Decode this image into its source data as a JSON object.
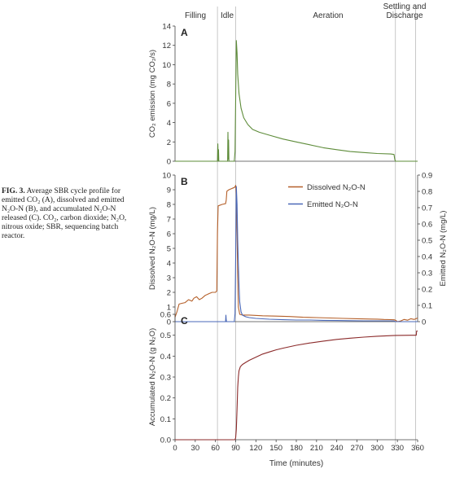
{
  "caption": {
    "label": "FIG. 3.",
    "text": "Average SBR cycle profile for emitted CO₂ (A), dissolved and emitted N₂O-N (B), and accumulated N₂O-N released (C). CO₂, carbon dioxide; N₂O, nitrous oxide; SBR, sequencing batch reactor."
  },
  "phases": [
    {
      "label": "Filling",
      "start": 0,
      "end": 63
    },
    {
      "label": "Idle",
      "start": 63,
      "end": 90
    },
    {
      "label": "Aeration",
      "start": 90,
      "end": 327
    },
    {
      "label": "Settling and Discharge",
      "start": 327,
      "end": 360
    }
  ],
  "xaxis": {
    "label": "Time (minutes)",
    "ticks": [
      0,
      30,
      60,
      90,
      120,
      150,
      180,
      210,
      240,
      270,
      300,
      330,
      360
    ],
    "range": [
      0,
      360
    ]
  },
  "colors": {
    "co2": "#5e8c3a",
    "dissolved": "#b5602a",
    "emitted": "#4a68b8",
    "accumulated": "#8b2a2a",
    "phase_line": "#c8c8c8",
    "axis": "#444444"
  },
  "chart_data": [
    {
      "type": "line",
      "panel": "A",
      "ylabel": "CO₂ emission (mg CO₂/s)",
      "ylim": [
        0,
        14
      ],
      "yticks": [
        0,
        2,
        4,
        6,
        8,
        10,
        12,
        14
      ],
      "series": [
        {
          "name": "",
          "color": "#5e8c3a",
          "x": [
            0,
            63,
            63.5,
            64,
            64.5,
            65,
            78,
            78.5,
            79,
            79.5,
            80,
            88,
            89,
            90,
            91,
            92,
            93,
            95,
            98,
            102,
            108,
            115,
            125,
            140,
            160,
            180,
            200,
            220,
            240,
            260,
            280,
            300,
            320,
            325,
            326,
            327,
            330,
            360
          ],
          "y": [
            0,
            0,
            1.8,
            0.1,
            1.2,
            0,
            0,
            3.0,
            0.2,
            2.2,
            0,
            0,
            1.0,
            6.5,
            12.5,
            11.2,
            9.0,
            7.0,
            5.5,
            4.5,
            3.8,
            3.3,
            3.0,
            2.7,
            2.3,
            2.0,
            1.7,
            1.4,
            1.2,
            1.0,
            0.9,
            0.8,
            0.75,
            0.7,
            0.2,
            0,
            0,
            0
          ]
        }
      ]
    },
    {
      "type": "line",
      "panel": "B",
      "ylabel": "Dissolved N₂O-N (mg/L)",
      "ylabel_right": "Emitted N₂O-N (mg/L)",
      "ylim": [
        0,
        10
      ],
      "yticks": [
        0,
        1,
        2,
        3,
        4,
        5,
        6,
        7,
        8,
        9,
        10
      ],
      "ylim_right": [
        0,
        0.9
      ],
      "yticks_right": [
        "0",
        "0.1",
        "0.2",
        "0.3",
        "0.4",
        "0.5",
        "0.6",
        "0.7",
        "0.8",
        "0.9"
      ],
      "legend": "top-right",
      "series": [
        {
          "name": "Dissolved N₂O-N",
          "color": "#b5602a",
          "axis": "left",
          "x": [
            0,
            3,
            6,
            10,
            15,
            20,
            25,
            28,
            32,
            36,
            40,
            45,
            50,
            55,
            60,
            62,
            63,
            64,
            70,
            75,
            76,
            77,
            80,
            85,
            88,
            89,
            90,
            91,
            92,
            93,
            94,
            96,
            100,
            110,
            130,
            150,
            170,
            190,
            210,
            230,
            250,
            270,
            290,
            300,
            310,
            320,
            325,
            327,
            330,
            335,
            340,
            345,
            350,
            355,
            360
          ],
          "y": [
            0.3,
            0.7,
            1.2,
            1.25,
            1.3,
            1.5,
            1.4,
            1.6,
            1.7,
            1.5,
            1.6,
            1.8,
            1.9,
            2.0,
            2.0,
            2.1,
            6.0,
            7.9,
            8.0,
            8.05,
            8.3,
            8.9,
            9.0,
            9.1,
            9.15,
            9.2,
            9.3,
            8.5,
            6.0,
            3.0,
            1.0,
            0.5,
            0.45,
            0.45,
            0.4,
            0.38,
            0.35,
            0.3,
            0.28,
            0.25,
            0.22,
            0.2,
            0.18,
            0.17,
            0.15,
            0.14,
            0.13,
            0.1,
            0.0,
            0.05,
            0.15,
            0.1,
            0.2,
            0.15,
            0.25
          ]
        },
        {
          "name": "Emitted N₂O-N",
          "color": "#4a68b8",
          "axis": "right",
          "x": [
            0,
            75,
            75.5,
            76,
            76.5,
            88,
            89,
            90,
            91,
            92,
            93,
            94,
            95,
            96,
            98,
            100,
            105,
            110,
            120,
            140,
            160,
            180,
            200,
            220,
            240,
            260,
            280,
            300,
            320,
            325,
            327,
            360
          ],
          "y": [
            0,
            0,
            0.04,
            0.01,
            0,
            0,
            0.05,
            0.4,
            0.83,
            0.72,
            0.5,
            0.35,
            0.22,
            0.12,
            0.06,
            0.04,
            0.03,
            0.025,
            0.02,
            0.015,
            0.012,
            0.01,
            0.01,
            0.008,
            0.007,
            0.006,
            0.005,
            0.005,
            0.005,
            0.004,
            0,
            0
          ]
        }
      ]
    },
    {
      "type": "line",
      "panel": "C",
      "ylabel": "Accumulated N₂O-N (g N₂O)",
      "ylim": [
        0,
        0.6
      ],
      "yticks": [
        "0.0",
        "0.1",
        "0.2",
        "0.3",
        "0.4",
        "0.5",
        "0.6"
      ],
      "series": [
        {
          "name": "",
          "color": "#8b2a2a",
          "x": [
            0,
            88,
            89,
            90,
            91,
            92,
            93,
            94,
            95,
            97,
            100,
            105,
            110,
            120,
            130,
            140,
            150,
            160,
            180,
            200,
            220,
            240,
            260,
            280,
            300,
            320,
            327,
            350,
            358,
            358.5,
            360
          ],
          "y": [
            0,
            0,
            0.0,
            0.01,
            0.05,
            0.15,
            0.25,
            0.3,
            0.33,
            0.35,
            0.36,
            0.37,
            0.38,
            0.395,
            0.41,
            0.42,
            0.43,
            0.438,
            0.452,
            0.463,
            0.472,
            0.48,
            0.486,
            0.491,
            0.495,
            0.498,
            0.499,
            0.5,
            0.5,
            0.52,
            0.52
          ]
        }
      ]
    }
  ]
}
